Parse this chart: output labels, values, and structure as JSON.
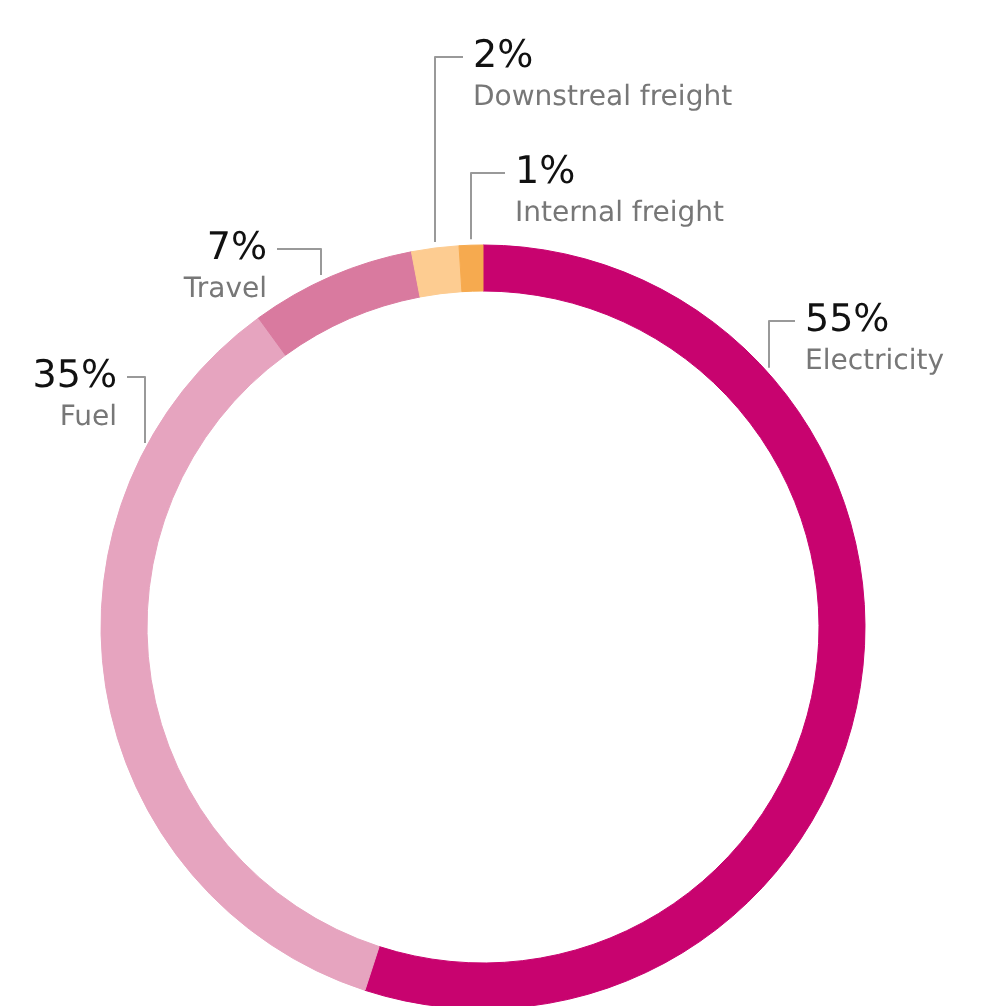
{
  "chart_data": {
    "type": "donut",
    "categories": [
      "Electricity",
      "Fuel",
      "Travel",
      "Downstreal freight",
      "Internal freight"
    ],
    "values": [
      55,
      35,
      7,
      2,
      1
    ],
    "colors": [
      "#c8036f",
      "#e6a4bf",
      "#d97a9f",
      "#fdcc91",
      "#f6aa4f"
    ],
    "value_labels": [
      "55%",
      "35%",
      "7%",
      "2%",
      "1%"
    ]
  }
}
